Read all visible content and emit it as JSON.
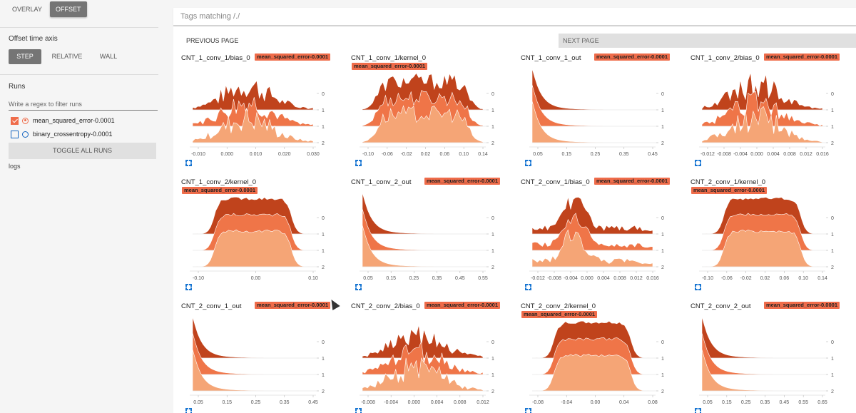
{
  "sidebar": {
    "modes": [
      {
        "label": "OVERLAY",
        "active": false
      },
      {
        "label": "OFFSET",
        "active": true
      }
    ],
    "offset_title": "Offset time axis",
    "axis_options": [
      {
        "label": "STEP",
        "active": true
      },
      {
        "label": "RELATIVE",
        "active": false
      },
      {
        "label": "WALL",
        "active": false
      }
    ],
    "runs_title": "Runs",
    "filter_placeholder": "Write a regex to filter runs",
    "runs": [
      {
        "label": "mean_squared_error-0.0001",
        "checked": true,
        "color": "#ef6c4a"
      },
      {
        "label": "binary_crossentropy-0.0001",
        "checked": false,
        "color": "#1565c0"
      }
    ],
    "toggle_label": "TOGGLE ALL RUNS",
    "logs_label": "logs"
  },
  "search": {
    "placeholder": "Tags matching /./"
  },
  "pager": {
    "prev_label": "PREVIOUS PAGE",
    "next_label": "NEXT PAGE"
  },
  "colors": {
    "step0": "#c0431c",
    "step1": "#ef7548",
    "step2": "#f5a576",
    "badge": "#ef6c4a",
    "icon": "#1976d2"
  },
  "chart_data": [
    {
      "type": "area",
      "title": "CNT_1_conv_1/bias_0",
      "run": "mean_squared_error-0.0001",
      "badge_inline": true,
      "shape": "multi",
      "xticks": [
        "-0.010",
        "0.000",
        "0.010",
        "0.020",
        "0.030"
      ],
      "yticks": [
        "0",
        "1",
        "1",
        "2"
      ]
    },
    {
      "type": "area",
      "title": "CNT_1_conv_1/kernel_0",
      "run": "mean_squared_error-0.0001",
      "badge_inline": false,
      "shape": "wide-bumpy",
      "xticks": [
        "-0.10",
        "-0.06",
        "-0.02",
        "0.02",
        "0.06",
        "0.10",
        "0.14"
      ],
      "yticks": [
        "0",
        "1",
        "1",
        "2"
      ]
    },
    {
      "type": "area",
      "title": "CNT_1_conv_1_out",
      "run": "mean_squared_error-0.0001",
      "badge_inline": true,
      "shape": "decay",
      "xticks": [
        "0.05",
        "0.15",
        "0.25",
        "0.35",
        "0.45"
      ],
      "yticks": [
        "0",
        "1",
        "1",
        "2"
      ]
    },
    {
      "type": "area",
      "title": "CNT_1_conv_2/bias_0",
      "run": "mean_squared_error-0.0001",
      "badge_inline": true,
      "shape": "multi",
      "xticks": [
        "-0.012",
        "-0.008",
        "-0.004",
        "0.000",
        "0.004",
        "0.008",
        "0.012",
        "0.016"
      ],
      "yticks": [
        "0",
        "1",
        "1",
        "2"
      ]
    },
    {
      "type": "area",
      "title": "CNT_1_conv_2/kernel_0",
      "run": "mean_squared_error-0.0001",
      "badge_inline": false,
      "shape": "plateau",
      "xticks": [
        "-0.10",
        "0.00",
        "0.10"
      ],
      "yticks": [
        "0",
        "1",
        "1",
        "2"
      ]
    },
    {
      "type": "area",
      "title": "CNT_1_conv_2_out",
      "run": "mean_squared_error-0.0001",
      "badge_inline": true,
      "shape": "decay",
      "xticks": [
        "0.05",
        "0.15",
        "0.25",
        "0.35",
        "0.45",
        "0.55"
      ],
      "yticks": [
        "0",
        "1",
        "1",
        "2"
      ]
    },
    {
      "type": "area",
      "title": "CNT_2_conv_1/bias_0",
      "run": "mean_squared_error-0.0001",
      "badge_inline": true,
      "shape": "spiky",
      "xticks": [
        "-0.012",
        "-0.008",
        "-0.004",
        "0.000",
        "0.004",
        "0.008",
        "0.012",
        "0.016"
      ],
      "yticks": [
        "0",
        "1",
        "1",
        "2"
      ]
    },
    {
      "type": "area",
      "title": "CNT_2_conv_1/kernel_0",
      "run": "mean_squared_error-0.0001",
      "badge_inline": false,
      "shape": "plateau",
      "xticks": [
        "-0.10",
        "-0.06",
        "-0.02",
        "0.02",
        "0.06",
        "0.10",
        "0.14"
      ],
      "yticks": [
        "0",
        "1",
        "1",
        "2"
      ]
    },
    {
      "type": "area",
      "title": "CNT_2_conv_1_out",
      "run": "mean_squared_error-0.0001",
      "badge_inline": true,
      "shape": "decay",
      "xticks": [
        "0.05",
        "0.15",
        "0.25",
        "0.35",
        "0.45"
      ],
      "yticks": [
        "0",
        "1",
        "1",
        "2"
      ]
    },
    {
      "type": "area",
      "title": "CNT_2_conv_2/bias_0",
      "run": "mean_squared_error-0.0001",
      "badge_inline": true,
      "shape": "multi",
      "xticks": [
        "-0.008",
        "-0.004",
        "0.000",
        "0.004",
        "0.008",
        "0.012"
      ],
      "yticks": [
        "0",
        "1",
        "1",
        "2"
      ]
    },
    {
      "type": "area",
      "title": "CNT_2_conv_2/kernel_0",
      "run": "mean_squared_error-0.0001",
      "badge_inline": false,
      "shape": "plateau",
      "xticks": [
        "-0.08",
        "-0.04",
        "0.00",
        "0.04",
        "0.08"
      ],
      "yticks": [
        "0",
        "1",
        "1",
        "2"
      ]
    },
    {
      "type": "area",
      "title": "CNT_2_conv_2_out",
      "run": "mean_squared_error-0.0001",
      "badge_inline": true,
      "shape": "decay",
      "xticks": [
        "0.05",
        "0.15",
        "0.25",
        "0.35",
        "0.45",
        "0.55",
        "0.65"
      ],
      "yticks": [
        "0",
        "1",
        "1",
        "2"
      ]
    }
  ]
}
